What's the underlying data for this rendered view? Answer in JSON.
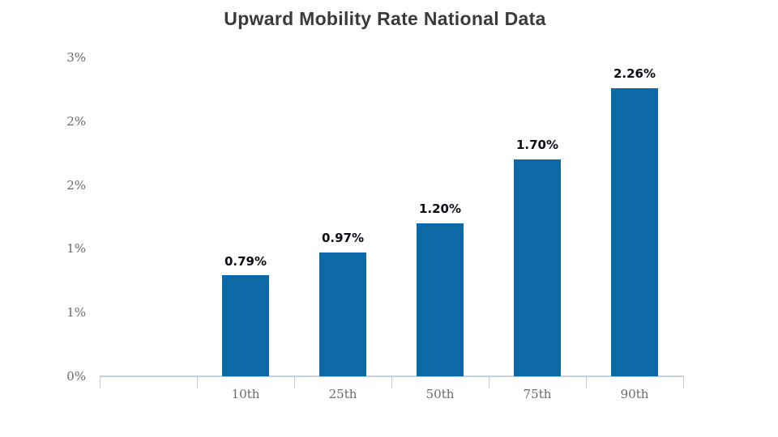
{
  "chart_data": {
    "type": "bar",
    "title": "Upward Mobility Rate National Data",
    "categories": [
      "10th",
      "25th",
      "50th",
      "75th",
      "90th"
    ],
    "values": [
      0.79,
      0.97,
      1.2,
      1.7,
      2.26
    ],
    "value_labels": [
      "0.79%",
      "0.97%",
      "1.20%",
      "1.70%",
      "2.26%"
    ],
    "xlabel": "",
    "ylabel": "",
    "ylim": [
      0,
      2.5
    ],
    "y_tick_values": [
      0,
      0.5,
      1.0,
      1.5,
      2.0,
      2.5
    ],
    "y_tick_labels": [
      "0%",
      "1%",
      "1%",
      "2%",
      "2%",
      "3%"
    ],
    "grid": false,
    "legend": false,
    "layout_hints": {
      "leading_empty_category_slot": true,
      "value_labels_above_bars": true
    },
    "colors": {
      "bar": "#0d6aa7",
      "title_text": "#3a3a3a",
      "axis_line": "#c6cfd8",
      "axis_tick_text": "#6b6b6b",
      "value_label_text": "#0b0b14"
    }
  }
}
